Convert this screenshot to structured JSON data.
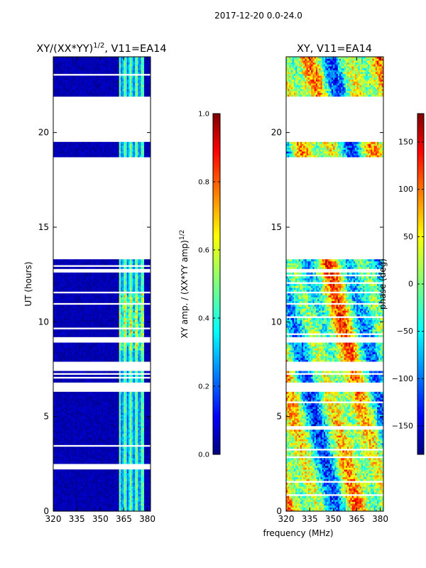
{
  "figure": {
    "suptitle": "2017-12-20 0.0-24.0",
    "xlabel_shared": "frequency (MHz)"
  },
  "chart_data": [
    {
      "type": "heatmap",
      "title_main": "XY/(XX*YY)",
      "title_sup": "1/2",
      "title_tail": ", V11=EA14",
      "ylabel": "UT (hours)",
      "xlim": [
        320,
        382
      ],
      "ylim": [
        0,
        24
      ],
      "xticks": [
        320,
        335,
        350,
        365,
        380
      ],
      "yticks": [
        0,
        5,
        10,
        15,
        20
      ],
      "colorbar": {
        "label_main": "XY amp. / (XX*YY amp)",
        "label_sup": "1/2",
        "range": [
          0.0,
          1.0
        ],
        "ticks": [
          "0.0",
          "0.2",
          "0.4",
          "0.6",
          "0.8",
          "1.0"
        ],
        "tick_values": [
          0.0,
          0.2,
          0.4,
          0.6,
          0.8,
          1.0
        ],
        "colormap": "jet"
      },
      "data_blocks": [
        {
          "ut": [
            0.0,
            6.3
          ]
        },
        {
          "ut": [
            6.8,
            7.4
          ]
        },
        {
          "ut": [
            7.9,
            8.9
          ]
        },
        {
          "ut": [
            9.2,
            10.9
          ]
        },
        {
          "ut": [
            11.0,
            11.5
          ]
        },
        {
          "ut": [
            11.6,
            12.6
          ]
        },
        {
          "ut": [
            12.8,
            13.3
          ]
        },
        {
          "ut": [
            18.7,
            19.5
          ]
        },
        {
          "ut": [
            21.9,
            24.0
          ]
        }
      ]
    },
    {
      "type": "heatmap",
      "title": "XY, V11=EA14",
      "xlim": [
        320,
        382
      ],
      "ylim": [
        0,
        24
      ],
      "xticks": [
        320,
        335,
        350,
        365,
        380
      ],
      "yticks": [
        0,
        5,
        10,
        15,
        20
      ],
      "colorbar": {
        "label": "phase (deg)",
        "range": [
          -180,
          180
        ],
        "ticks": [
          "−150",
          "−100",
          "−50",
          "0",
          "50",
          "100",
          "150"
        ],
        "tick_values": [
          -150,
          -100,
          -50,
          0,
          50,
          100,
          150
        ],
        "colormap": "jet"
      },
      "data_blocks": [
        {
          "ut": [
            0.0,
            6.3
          ]
        },
        {
          "ut": [
            6.8,
            7.4
          ]
        },
        {
          "ut": [
            7.9,
            8.9
          ]
        },
        {
          "ut": [
            9.2,
            10.9
          ]
        },
        {
          "ut": [
            11.0,
            11.5
          ]
        },
        {
          "ut": [
            11.6,
            12.6
          ]
        },
        {
          "ut": [
            12.8,
            13.3
          ]
        },
        {
          "ut": [
            18.7,
            19.5
          ]
        },
        {
          "ut": [
            21.9,
            24.0
          ]
        }
      ]
    }
  ]
}
